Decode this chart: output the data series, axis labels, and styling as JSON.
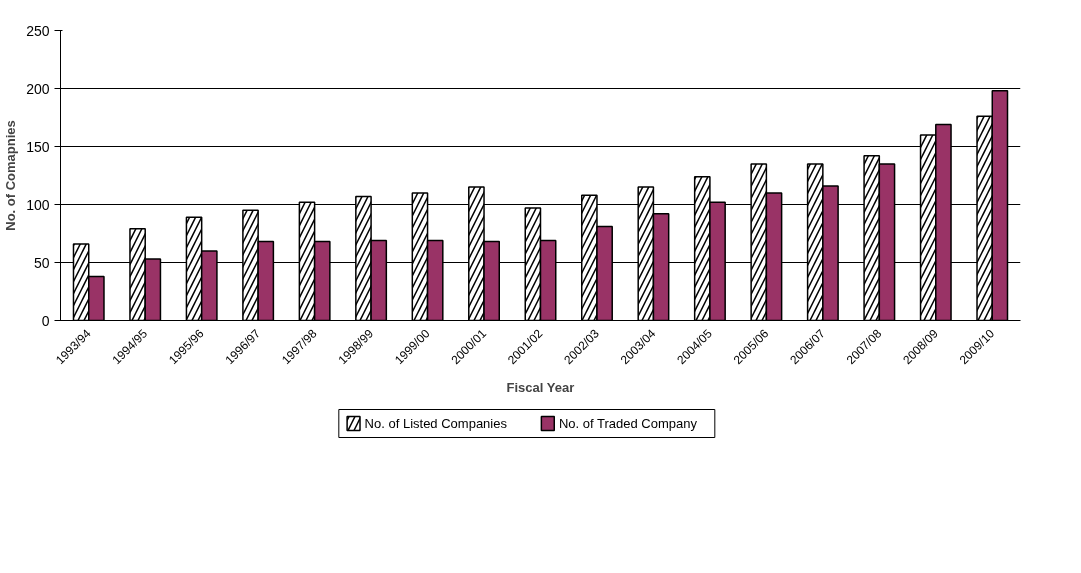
{
  "chart_data": {
    "type": "bar",
    "xlabel": "Fiscal Year",
    "ylabel": "No. of Comapnies",
    "categories": [
      "1993/94",
      "1994/95",
      "1995/96",
      "1996/97",
      "1997/98",
      "1998/99",
      "1999/00",
      "2000/01",
      "2001/02",
      "2002/03",
      "2003/04",
      "2004/05",
      "2005/06",
      "2006/07",
      "2007/08",
      "2008/09",
      "2009/10"
    ],
    "series": [
      {
        "name": "No. of  Listed Companies",
        "color": "#ffffff",
        "values": [
          66,
          79,
          89,
          95,
          102,
          107,
          110,
          115,
          97,
          108,
          115,
          124,
          135,
          135,
          142,
          160,
          176
        ]
      },
      {
        "name": "No. of Traded Company",
        "color": "#993366",
        "values": [
          38,
          53,
          60,
          68,
          68,
          69,
          69,
          68,
          69,
          81,
          92,
          102,
          110,
          116,
          135,
          169,
          198
        ]
      }
    ],
    "ylim": [
      0,
      250
    ],
    "yticks": [
      0,
      50,
      100,
      150,
      200,
      250
    ],
    "grid": "y",
    "legend": "bottom"
  }
}
